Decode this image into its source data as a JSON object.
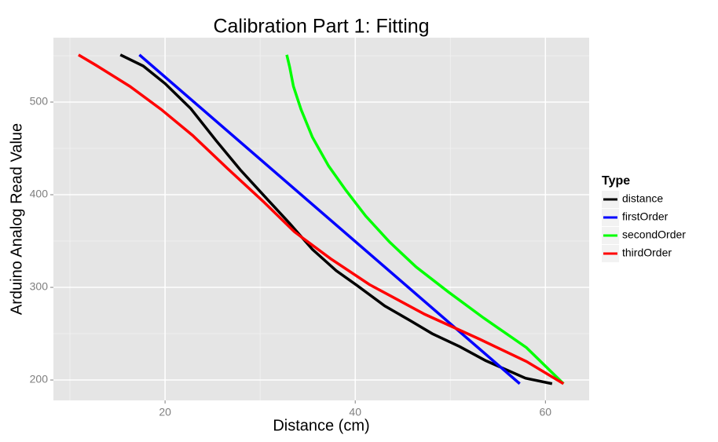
{
  "chart_data": {
    "type": "line",
    "title": "Calibration Part 1: Fitting",
    "x_label": "Distance (cm)",
    "y_label": "Arduino Analog Read Value",
    "legend_title": "Type",
    "legend_position": "right",
    "grid": true,
    "xlim": [
      8.26,
      64.6
    ],
    "xticks": [
      20,
      40,
      60
    ],
    "ylim": [
      178,
      569.5
    ],
    "yticks": [
      200,
      300,
      400,
      500
    ],
    "series": [
      {
        "name": "distance",
        "color": "#000000",
        "x": [
          15.3,
          17.7,
          20,
          22.7,
          25.4,
          27.9,
          30.4,
          33.1,
          35.5,
          38,
          40.2,
          43.1,
          45.8,
          48.1,
          51,
          53.7,
          57.9,
          60.7
        ],
        "values": [
          551,
          539,
          520,
          493,
          458,
          427,
          399,
          369,
          341,
          318,
          302,
          280,
          264,
          250,
          236,
          221,
          202,
          196
        ]
      },
      {
        "name": "firstOrder",
        "color": "#0000ff",
        "x": [
          17.3,
          57.3
        ],
        "values": [
          551,
          196
        ]
      },
      {
        "name": "secondOrder",
        "color": "#00ff00",
        "x": [
          32.8,
          33.1,
          33.5,
          34.3,
          35.5,
          37.2,
          39,
          41.1,
          43.6,
          46.4,
          49.8,
          53.5,
          58,
          61.9
        ],
        "values": [
          551,
          538,
          517,
          492,
          462,
          431,
          405,
          377,
          349,
          322,
          295,
          267,
          235,
          196
        ]
      },
      {
        "name": "thirdOrder",
        "color": "#ff0000",
        "x": [
          10.9,
          12.7,
          16.3,
          19.6,
          22.9,
          26.6,
          30.4,
          33.6,
          37.4,
          41.5,
          47.3,
          53.1,
          58,
          61.9
        ],
        "values": [
          551,
          540,
          517,
          492,
          464,
          428,
          392,
          360,
          331,
          303,
          271,
          244,
          220,
          196
        ]
      }
    ]
  }
}
